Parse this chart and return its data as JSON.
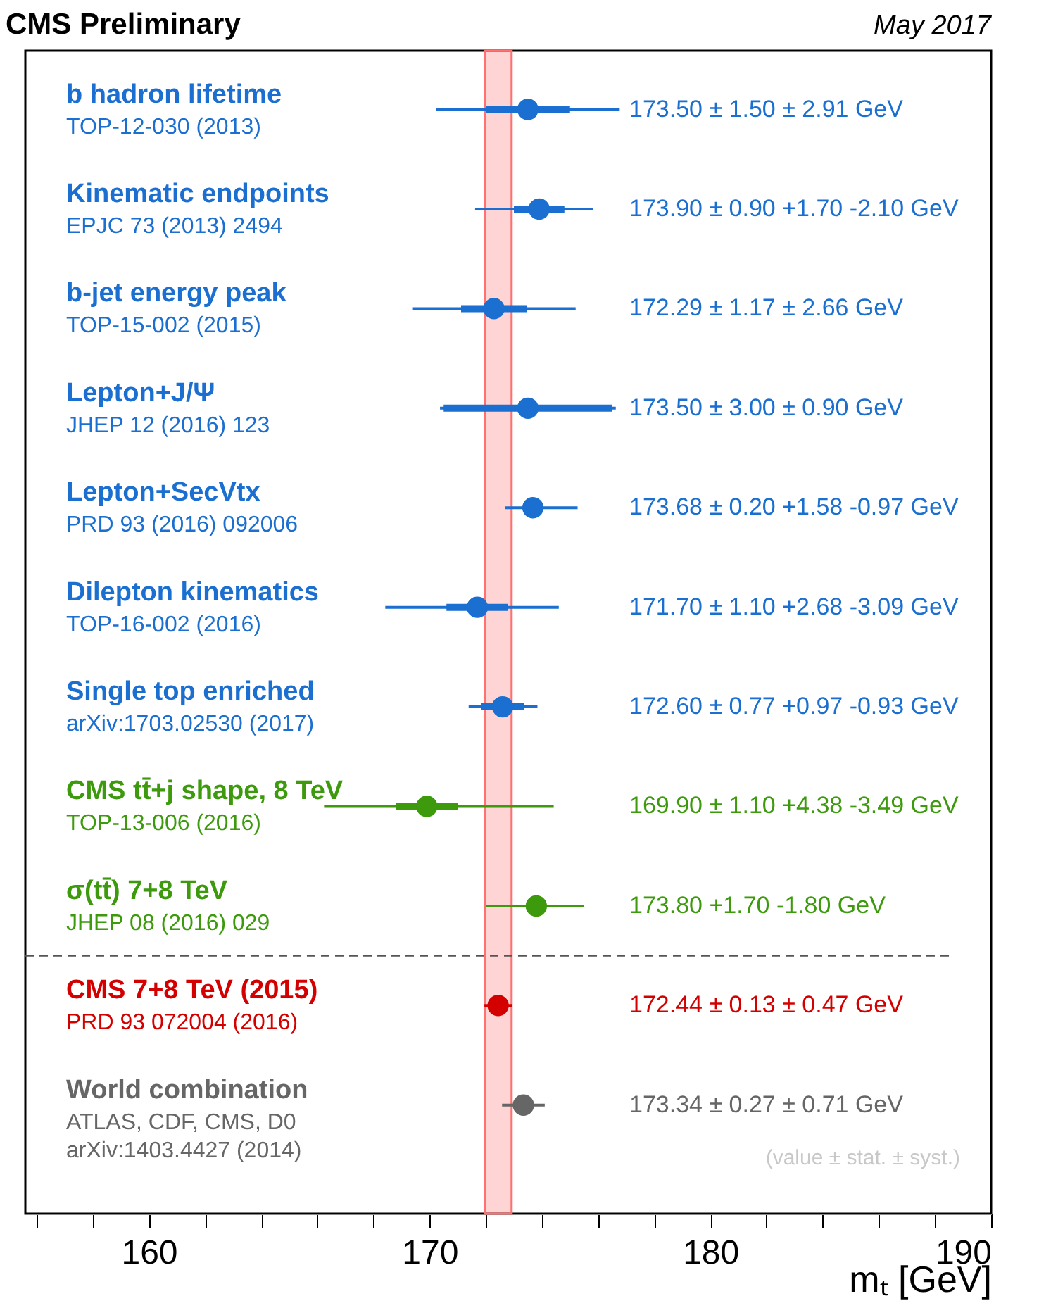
{
  "chart_data": {
    "type": "scatter",
    "orientation": "horizontal",
    "title": "CMS Preliminary",
    "subtitle": "May 2017",
    "xlabel": "mₜ [GeV]",
    "categories": [
      "b hadron lifetime",
      "Kinematic endpoints",
      "b-jet energy peak",
      "Lepton+J/Ψ",
      "Lepton+SecVtx",
      "Dilepton kinematics",
      "Single top enriched",
      "CMS tt̄+j shape, 8 TeV",
      "σ(tt̄) 7+8 TeV",
      "CMS 7+8 TeV (2015)",
      "World combination"
    ],
    "series": [
      {
        "type": "bar",
        "base": [
          172.0,
          173.0,
          171.12,
          170.5,
          null,
          170.6,
          171.83,
          168.8,
          null,
          null,
          null
        ],
        "values": [
          3.0,
          1.8,
          2.34,
          6.0,
          null,
          2.2,
          1.54,
          2.2,
          null,
          null,
          null
        ],
        "colors": [
          "#1a6fd0",
          "#1a6fd0",
          "#1a6fd0",
          "#1a6fd0",
          "#1a6fd0",
          "#1a6fd0",
          "#1a6fd0",
          "#3c9a0c",
          "#3c9a0c",
          "#d40000",
          "#666666"
        ]
      },
      {
        "marker": "circle",
        "values": [
          173.5,
          173.9,
          172.29,
          173.5,
          173.68,
          171.7,
          172.6,
          169.9,
          173.8,
          172.44,
          173.34
        ],
        "errors": [
          3.27,
          [
            171.62,
            175.82
          ],
          2.91,
          3.13,
          [
            172.69,
            175.27
          ],
          [
            168.42,
            174.6
          ],
          [
            171.39,
            173.84
          ],
          [
            166.24,
            174.42
          ],
          [
            172.0,
            175.5
          ],
          0.49,
          0.76
        ],
        "colors": [
          "#1a6fd0",
          "#1a6fd0",
          "#1a6fd0",
          "#1a6fd0",
          "#1a6fd0",
          "#1a6fd0",
          "#1a6fd0",
          "#3c9a0c",
          "#3c9a0c",
          "#d40000",
          "#666666"
        ]
      }
    ],
    "xlim": [
      155.6,
      190
    ],
    "xticks": [
      {
        "value": 156,
        "label": null
      },
      {
        "value": 158,
        "label": null
      },
      160,
      {
        "value": 162,
        "label": null
      },
      {
        "value": 164,
        "label": null
      },
      {
        "value": 166,
        "label": null
      },
      {
        "value": 168,
        "label": null
      },
      170,
      {
        "value": 172,
        "label": null
      },
      {
        "value": 174,
        "label": null
      },
      {
        "value": 176,
        "label": null
      },
      {
        "value": 178,
        "label": null
      },
      180,
      {
        "value": 182,
        "label": null
      },
      {
        "value": 184,
        "label": null
      },
      {
        "value": 186,
        "label": null
      },
      {
        "value": 188,
        "label": null
      },
      190
    ],
    "bands": [
      {
        "axis": "x",
        "from": 171.96,
        "to": 172.92,
        "color": "#ff7070"
      }
    ],
    "ref_lines": [
      {
        "axis": "y",
        "value": "CMS 7+8 TeV (2015)",
        "line_style": "dashed",
        "color": "#555555"
      }
    ],
    "annotations": [
      "173.50 ± 1.50 ± 2.91 GeV",
      "173.90 ± 0.90 +1.70 -2.10 GeV",
      "172.29 ± 1.17 ± 2.66 GeV",
      "173.50 ± 3.00 ± 0.90 GeV",
      "173.68 ± 0.20 +1.58 -0.97 GeV",
      "171.70 ± 1.10 +2.68 -3.09 GeV",
      "172.60 ± 0.77 +0.97 -0.93 GeV",
      "169.90 ± 1.10 +4.38 -3.49 GeV",
      "173.80 +1.70 -1.80 GeV",
      "172.44 ± 0.13 ± 0.47 GeV",
      "173.34 ± 0.27 ± 0.71 GeV",
      "TOP-12-030 (2013)",
      "EPJC 73 (2013) 2494",
      "TOP-15-002 (2015)",
      "JHEP 12 (2016) 123",
      "PRD 93 (2016) 092006",
      "TOP-16-002 (2016)",
      "arXiv:1703.02530 (2017)",
      "TOP-13-006 (2016)",
      "JHEP 08 (2016) 029",
      "PRD 93 072004 (2016)",
      "ATLAS, CDF, CMS, D0",
      "arXiv:1403.4427 (2014)",
      "(value ± stat. ± syst.)"
    ]
  }
}
